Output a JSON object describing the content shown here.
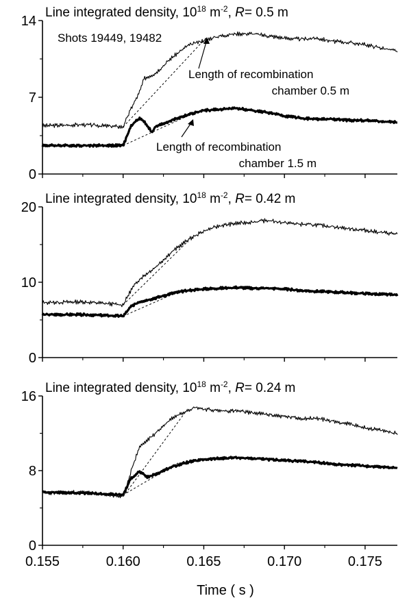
{
  "chart_data": [
    {
      "type": "line",
      "title_prefix": "Line integrated density, 10",
      "title_exp": "18",
      "title_unit": " m",
      "title_unit_exp": "-2",
      "title_sep": ",  ",
      "title_r": "R",
      "title_r_value": "= 0.5 m",
      "ylim": [
        0,
        14
      ],
      "yticks": [
        "0",
        "7",
        "14"
      ],
      "xlim": [
        0.155,
        0.177
      ],
      "annotations": [
        "Shots 19449, 19482",
        "Length of recombination",
        "chamber 0.5 m",
        "Length of recombination",
        "chamber 1.5 m"
      ],
      "series": [
        {
          "style": "thin",
          "x": [
            0.155,
            0.1575,
            0.16,
            0.1605,
            0.161,
            0.1613,
            0.162,
            0.163,
            0.164,
            0.165,
            0.166,
            0.167,
            0.168,
            0.169,
            0.17,
            0.171,
            0.172,
            0.173,
            0.174,
            0.175,
            0.176,
            0.177
          ],
          "y": [
            4.4,
            4.5,
            4.3,
            6.0,
            7.4,
            8.7,
            9.2,
            10.6,
            11.7,
            12.2,
            12.6,
            12.8,
            12.8,
            12.6,
            12.4,
            12.3,
            12.4,
            12.1,
            12.0,
            11.8,
            11.5,
            11.2
          ]
        },
        {
          "style": "thick",
          "x": [
            0.155,
            0.1575,
            0.16,
            0.1605,
            0.161,
            0.1613,
            0.1618,
            0.162,
            0.163,
            0.164,
            0.165,
            0.166,
            0.167,
            0.168,
            0.169,
            0.17,
            0.171,
            0.172,
            0.173,
            0.174,
            0.175,
            0.176,
            0.177
          ],
          "y": [
            2.6,
            2.6,
            2.6,
            4.4,
            5.1,
            4.8,
            3.8,
            4.3,
            4.9,
            5.4,
            5.8,
            5.9,
            6.0,
            5.8,
            5.6,
            5.3,
            5.1,
            5.0,
            5.0,
            4.9,
            4.9,
            4.8,
            4.7
          ]
        },
        {
          "style": "dashed",
          "x": [
            0.16,
            0.165
          ],
          "y": [
            4.3,
            12.2
          ]
        },
        {
          "style": "dashed",
          "x": [
            0.16,
            0.1643
          ],
          "y": [
            2.6,
            5.5
          ]
        }
      ]
    },
    {
      "type": "line",
      "title_prefix": "Line integrated density, 10",
      "title_exp": "18",
      "title_unit": " m",
      "title_unit_exp": "-2",
      "title_sep": ",  ",
      "title_r": "R",
      "title_r_value": "= 0.42 m",
      "ylim": [
        0,
        20
      ],
      "yticks": [
        "0",
        "10",
        "20"
      ],
      "xlim": [
        0.155,
        0.177
      ],
      "series": [
        {
          "style": "thin",
          "x": [
            0.155,
            0.1575,
            0.16,
            0.1605,
            0.161,
            0.162,
            0.163,
            0.164,
            0.165,
            0.166,
            0.167,
            0.168,
            0.169,
            0.17,
            0.171,
            0.172,
            0.173,
            0.174,
            0.175,
            0.176,
            0.177
          ],
          "y": [
            7.3,
            7.4,
            7.0,
            9.0,
            10.4,
            12.0,
            14.0,
            15.6,
            16.8,
            17.5,
            17.8,
            18.0,
            18.2,
            17.9,
            17.7,
            17.6,
            17.4,
            17.1,
            16.9,
            16.6,
            16.4
          ]
        },
        {
          "style": "thick",
          "x": [
            0.155,
            0.1575,
            0.16,
            0.1605,
            0.161,
            0.162,
            0.163,
            0.164,
            0.165,
            0.166,
            0.167,
            0.168,
            0.169,
            0.17,
            0.171,
            0.172,
            0.173,
            0.174,
            0.175,
            0.176,
            0.177
          ],
          "y": [
            5.7,
            5.7,
            5.5,
            6.8,
            7.4,
            7.9,
            8.5,
            8.9,
            9.1,
            9.2,
            9.3,
            9.2,
            9.2,
            9.1,
            8.9,
            8.8,
            8.7,
            8.6,
            8.5,
            8.4,
            8.3
          ]
        },
        {
          "style": "dashed",
          "x": [
            0.16,
            0.164
          ],
          "y": [
            7.0,
            15.4
          ]
        },
        {
          "style": "dashed",
          "x": [
            0.16,
            0.1635
          ],
          "y": [
            5.5,
            8.8
          ]
        }
      ]
    },
    {
      "type": "line",
      "title_prefix": "Line integrated density, 10",
      "title_exp": "18",
      "title_unit": " m",
      "title_unit_exp": "-2",
      "title_sep": ",  ",
      "title_r": "R",
      "title_r_value": "= 0.24 m",
      "ylim": [
        0,
        16
      ],
      "yticks": [
        "0",
        "8",
        "16"
      ],
      "xlim": [
        0.155,
        0.177
      ],
      "xticks": [
        "0.155",
        "0.160",
        "0.165",
        "0.170",
        "0.175"
      ],
      "xlabel": "Time ( s )",
      "series": [
        {
          "style": "thin",
          "x": [
            0.155,
            0.1575,
            0.16,
            0.1605,
            0.161,
            0.162,
            0.163,
            0.164,
            0.1645,
            0.165,
            0.166,
            0.167,
            0.168,
            0.169,
            0.17,
            0.171,
            0.172,
            0.173,
            0.174,
            0.175,
            0.176,
            0.177
          ],
          "y": [
            5.6,
            5.7,
            5.2,
            8.0,
            10.5,
            12.0,
            13.6,
            14.5,
            14.8,
            14.6,
            14.4,
            14.4,
            14.2,
            14.0,
            13.8,
            13.6,
            13.6,
            13.3,
            13.0,
            12.6,
            12.3,
            12.0
          ]
        },
        {
          "style": "thick",
          "x": [
            0.155,
            0.1575,
            0.16,
            0.1605,
            0.161,
            0.1615,
            0.162,
            0.163,
            0.164,
            0.165,
            0.166,
            0.167,
            0.168,
            0.169,
            0.17,
            0.171,
            0.172,
            0.173,
            0.174,
            0.175,
            0.176,
            0.177
          ],
          "y": [
            5.7,
            5.6,
            5.4,
            7.2,
            7.9,
            7.3,
            7.6,
            8.4,
            8.9,
            9.2,
            9.3,
            9.4,
            9.3,
            9.2,
            9.1,
            9.0,
            8.9,
            8.7,
            8.6,
            8.5,
            8.4,
            8.3
          ]
        },
        {
          "style": "dashed",
          "x": [
            0.16,
            0.164
          ],
          "y": [
            5.2,
            14.6
          ]
        },
        {
          "style": "dashed",
          "x": [
            0.16,
            0.1635
          ],
          "y": [
            5.4,
            8.9
          ]
        }
      ]
    }
  ]
}
